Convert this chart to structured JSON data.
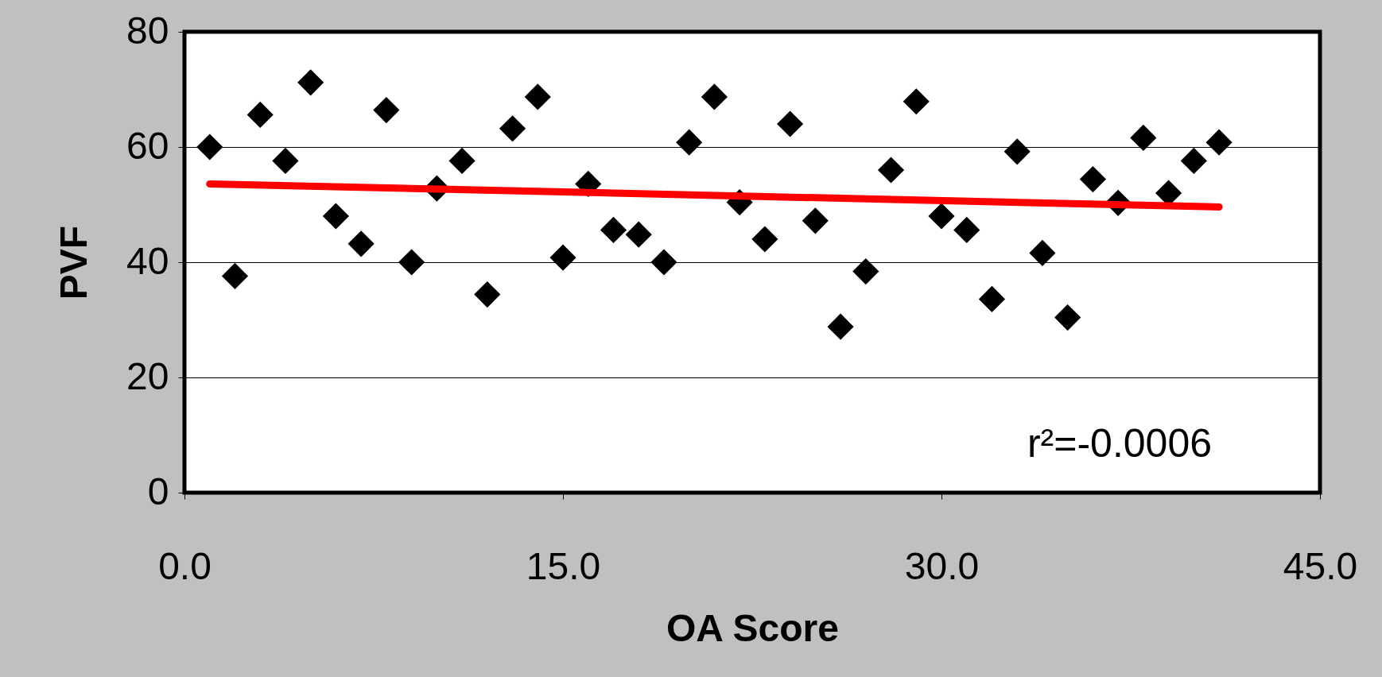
{
  "chart_data": {
    "type": "scatter",
    "xlabel": "OA Score",
    "ylabel": "PVF",
    "xlim": [
      0,
      45
    ],
    "ylim": [
      0,
      80
    ],
    "xticks": [
      {
        "value": 0,
        "label": "0.0"
      },
      {
        "value": 15,
        "label": "15.0"
      },
      {
        "value": 30,
        "label": "30.0"
      },
      {
        "value": 45,
        "label": "45.0"
      }
    ],
    "yticks": [
      0,
      20,
      40,
      60,
      80
    ],
    "grid": "y",
    "annotations": [
      "r²=-0.0006"
    ],
    "series": [
      {
        "marker": "diamond",
        "color": "#000000",
        "x": [
          1,
          2,
          3,
          4,
          5,
          6,
          7,
          8,
          9,
          10,
          11,
          12,
          13,
          14,
          15,
          16,
          17,
          18,
          19,
          20,
          21,
          22,
          23,
          24,
          25,
          26,
          27,
          28,
          29,
          30,
          31,
          32,
          33,
          34,
          35,
          36,
          37,
          38,
          39,
          40,
          41
        ],
        "values": [
          60.0,
          37.6,
          65.6,
          57.6,
          71.2,
          48.0,
          43.2,
          66.4,
          40.0,
          52.8,
          57.6,
          34.4,
          63.2,
          68.7,
          40.8,
          53.6,
          45.6,
          44.8,
          40.0,
          60.8,
          68.7,
          50.4,
          44.0,
          64.0,
          47.2,
          28.8,
          38.4,
          56.0,
          67.9,
          48.0,
          45.6,
          33.6,
          59.2,
          41.6,
          30.4,
          54.4,
          50.3,
          61.6,
          52.0,
          57.6,
          60.8
        ]
      },
      {
        "type": "line",
        "color": "#ff0000",
        "x": [
          1,
          41
        ],
        "values": [
          53.6,
          49.6
        ]
      }
    ]
  }
}
